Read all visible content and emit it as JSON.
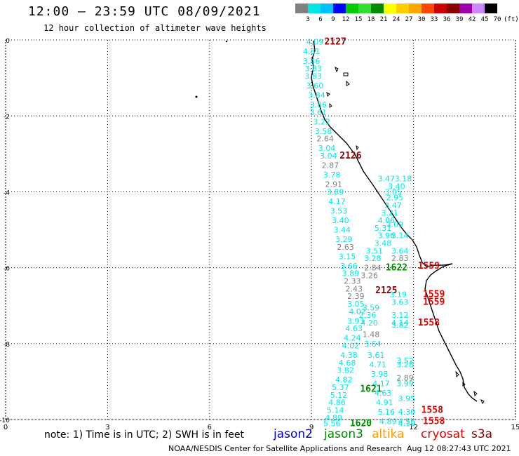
{
  "header": {
    "title": "12:00 – 23:59 UTC 08/09/2021",
    "subtitle": "12 hour collection of altimeter wave heights"
  },
  "color_scale": {
    "labels": [
      "3",
      "6",
      "9",
      "12",
      "15",
      "18",
      "21",
      "24",
      "27",
      "30",
      "33",
      "36",
      "39",
      "42",
      "45",
      "70",
      "(ft)"
    ],
    "colors": [
      "#808080",
      "#00e5e5",
      "#00bfff",
      "#0000ff",
      "#00cc00",
      "#33dd33",
      "#008800",
      "#ffff00",
      "#ffcc00",
      "#ffa500",
      "#ff4500",
      "#cc0000",
      "#880000",
      "#9900aa",
      "#cc88ff",
      "#000000"
    ]
  },
  "chart_data": {
    "type": "scatter",
    "x_axis_ticks": [
      "0",
      "3",
      "6",
      "9",
      "12",
      "15"
    ],
    "y_axis_ticks": [
      "0",
      "-2",
      "-4",
      "-6",
      "-8",
      "-10"
    ],
    "xlim": [
      0,
      15
    ],
    "ylim": [
      -10,
      0
    ],
    "grid": true,
    "track_labels": [
      {
        "text": "4.09",
        "x": 9.1,
        "y": -0.05,
        "color": "#00e5e5"
      },
      {
        "text": "2127",
        "x": 9.7,
        "y": -0.05,
        "color": "#880000"
      },
      {
        "text": "4.81",
        "x": 9.0,
        "y": -0.3,
        "color": "#00e5e5"
      },
      {
        "text": "3.46",
        "x": 9.0,
        "y": -0.55,
        "color": "#00e5e5"
      },
      {
        "text": "3.83",
        "x": 9.05,
        "y": -0.75,
        "color": "#00e5e5"
      },
      {
        "text": "3.83",
        "x": 9.05,
        "y": -0.95,
        "color": "#00e5e5"
      },
      {
        "text": "3.60",
        "x": 9.1,
        "y": -1.2,
        "color": "#00e5e5"
      },
      {
        "text": "3.84",
        "x": 9.15,
        "y": -1.45,
        "color": "#00e5e5"
      },
      {
        "text": "3.86",
        "x": 9.2,
        "y": -1.7,
        "color": "#00e5e5"
      },
      {
        "text": "3.61",
        "x": 9.2,
        "y": -1.9,
        "color": "#00e5e5"
      },
      {
        "text": "3.22",
        "x": 9.3,
        "y": -2.15,
        "color": "#00e5e5"
      },
      {
        "text": "3.58",
        "x": 9.35,
        "y": -2.4,
        "color": "#00e5e5"
      },
      {
        "text": "2.64",
        "x": 9.4,
        "y": -2.6,
        "color": "#808080"
      },
      {
        "text": "3.04",
        "x": 9.45,
        "y": -2.85,
        "color": "#00e5e5"
      },
      {
        "text": "3.04",
        "x": 9.5,
        "y": -3.05,
        "color": "#00e5e5"
      },
      {
        "text": "2126",
        "x": 10.15,
        "y": -3.05,
        "color": "#880000"
      },
      {
        "text": "2.87",
        "x": 9.55,
        "y": -3.3,
        "color": "#808080"
      },
      {
        "text": "3.78",
        "x": 9.6,
        "y": -3.55,
        "color": "#00e5e5"
      },
      {
        "text": "2.91",
        "x": 9.65,
        "y": -3.8,
        "color": "#808080"
      },
      {
        "text": "3.89",
        "x": 9.7,
        "y": -4.0,
        "color": "#00e5e5"
      },
      {
        "text": "4.17",
        "x": 9.75,
        "y": -4.25,
        "color": "#00e5e5"
      },
      {
        "text": "3.53",
        "x": 9.8,
        "y": -4.5,
        "color": "#00e5e5"
      },
      {
        "text": "3.40",
        "x": 9.85,
        "y": -4.75,
        "color": "#00e5e5"
      },
      {
        "text": "3.44",
        "x": 9.9,
        "y": -5.0,
        "color": "#00e5e5"
      },
      {
        "text": "3.29",
        "x": 9.95,
        "y": -5.25,
        "color": "#00e5e5"
      },
      {
        "text": "2.63",
        "x": 10.0,
        "y": -5.45,
        "color": "#808080"
      },
      {
        "text": "3.15",
        "x": 10.05,
        "y": -5.7,
        "color": "#00e5e5"
      },
      {
        "text": "3.66",
        "x": 10.1,
        "y": -5.95,
        "color": "#00e5e5"
      },
      {
        "text": "3.89",
        "x": 10.15,
        "y": -6.15,
        "color": "#00e5e5"
      },
      {
        "text": "2.33",
        "x": 10.2,
        "y": -6.35,
        "color": "#808080"
      },
      {
        "text": "2.43",
        "x": 10.25,
        "y": -6.55,
        "color": "#808080"
      },
      {
        "text": "2.39",
        "x": 10.3,
        "y": -6.75,
        "color": "#808080"
      },
      {
        "text": "3.05",
        "x": 10.3,
        "y": -6.95,
        "color": "#00e5e5"
      },
      {
        "text": "4.02",
        "x": 10.35,
        "y": -7.15,
        "color": "#00e5e5"
      },
      {
        "text": "3.93",
        "x": 10.3,
        "y": -7.4,
        "color": "#00e5e5"
      },
      {
        "text": "4.63",
        "x": 10.25,
        "y": -7.6,
        "color": "#00e5e5"
      },
      {
        "text": "4.24",
        "x": 10.2,
        "y": -7.85,
        "color": "#00e5e5"
      },
      {
        "text": "4.02",
        "x": 10.15,
        "y": -8.05,
        "color": "#00e5e5"
      },
      {
        "text": "4.38",
        "x": 10.1,
        "y": -8.3,
        "color": "#00e5e5"
      },
      {
        "text": "4.68",
        "x": 10.05,
        "y": -8.5,
        "color": "#00e5e5"
      },
      {
        "text": "3.82",
        "x": 10.0,
        "y": -8.7,
        "color": "#00e5e5"
      },
      {
        "text": "4.82",
        "x": 9.95,
        "y": -8.95,
        "color": "#00e5e5"
      },
      {
        "text": "5.37",
        "x": 9.85,
        "y": -9.15,
        "color": "#00e5e5"
      },
      {
        "text": "5.12",
        "x": 9.8,
        "y": -9.35,
        "color": "#00e5e5"
      },
      {
        "text": "4.86",
        "x": 9.75,
        "y": -9.55,
        "color": "#00e5e5"
      },
      {
        "text": "5.14",
        "x": 9.7,
        "y": -9.75,
        "color": "#00e5e5"
      },
      {
        "text": "4.89",
        "x": 9.65,
        "y": -9.95,
        "color": "#00e5e5"
      },
      {
        "text": "5.56",
        "x": 9.6,
        "y": -10.1,
        "color": "#00e5e5"
      },
      {
        "text": "1620",
        "x": 10.45,
        "y": -10.1,
        "color": "#008800"
      },
      {
        "text": "1621",
        "x": 10.75,
        "y": -9.2,
        "color": "#008800"
      },
      {
        "text": "3.47",
        "x": 11.2,
        "y": -3.65,
        "color": "#00e5e5"
      },
      {
        "text": "3.18",
        "x": 11.7,
        "y": -3.65,
        "color": "#00e5e5"
      },
      {
        "text": "3.40",
        "x": 11.5,
        "y": -3.85,
        "color": "#00e5e5"
      },
      {
        "text": "3.05",
        "x": 11.4,
        "y": -4.0,
        "color": "#00e5e5"
      },
      {
        "text": "2.95",
        "x": 11.45,
        "y": -4.15,
        "color": "#00e5e5"
      },
      {
        "text": "3.47",
        "x": 11.4,
        "y": -4.35,
        "color": "#00e5e5"
      },
      {
        "text": "3.21",
        "x": 11.3,
        "y": -4.55,
        "color": "#00e5e5"
      },
      {
        "text": "4.06",
        "x": 11.2,
        "y": -4.75,
        "color": "#00e5e5"
      },
      {
        "text": "3.09",
        "x": 11.45,
        "y": -4.85,
        "color": "#00e5e5"
      },
      {
        "text": "5.31",
        "x": 11.1,
        "y": -4.95,
        "color": "#00e5e5"
      },
      {
        "text": "3.96",
        "x": 11.2,
        "y": -5.15,
        "color": "#00e5e5"
      },
      {
        "text": "3.14",
        "x": 11.6,
        "y": -5.15,
        "color": "#00e5e5"
      },
      {
        "text": "3.48",
        "x": 11.1,
        "y": -5.35,
        "color": "#00e5e5"
      },
      {
        "text": "3.51",
        "x": 10.85,
        "y": -5.55,
        "color": "#00e5e5"
      },
      {
        "text": "3.64",
        "x": 11.6,
        "y": -5.55,
        "color": "#00e5e5"
      },
      {
        "text": "3.28",
        "x": 10.8,
        "y": -5.75,
        "color": "#00e5e5"
      },
      {
        "text": "2.83",
        "x": 11.6,
        "y": -5.75,
        "color": "#808080"
      },
      {
        "text": "2.84",
        "x": 10.8,
        "y": -6.0,
        "color": "#808080"
      },
      {
        "text": "1622",
        "x": 11.5,
        "y": -6.0,
        "color": "#008800"
      },
      {
        "text": "1559",
        "x": 12.45,
        "y": -5.95,
        "color": "#dd0000"
      },
      {
        "text": "3.26",
        "x": 10.7,
        "y": -6.2,
        "color": "#808080"
      },
      {
        "text": "2125",
        "x": 11.2,
        "y": -6.6,
        "color": "#880000"
      },
      {
        "text": "3.19",
        "x": 11.55,
        "y": -6.7,
        "color": "#00e5e5"
      },
      {
        "text": "1559",
        "x": 12.6,
        "y": -6.7,
        "color": "#dd0000"
      },
      {
        "text": "3.63",
        "x": 11.6,
        "y": -6.9,
        "color": "#00e5e5"
      },
      {
        "text": "1559",
        "x": 12.6,
        "y": -6.9,
        "color": "#dd0000"
      },
      {
        "text": "3.59",
        "x": 10.75,
        "y": -7.05,
        "color": "#00e5e5"
      },
      {
        "text": "2.36",
        "x": 10.65,
        "y": -7.25,
        "color": "#00e5e5"
      },
      {
        "text": "3.12",
        "x": 11.6,
        "y": -7.25,
        "color": "#00e5e5"
      },
      {
        "text": "4.20",
        "x": 10.7,
        "y": -7.45,
        "color": "#00e5e5"
      },
      {
        "text": "4.14",
        "x": 11.6,
        "y": -7.45,
        "color": "#00e5e5"
      },
      {
        "text": "3.82",
        "x": 11.6,
        "y": -7.5,
        "color": "#00e5e5"
      },
      {
        "text": "1558",
        "x": 12.45,
        "y": -7.45,
        "color": "#dd0000"
      },
      {
        "text": "1.48",
        "x": 10.75,
        "y": -7.75,
        "color": "#808080"
      },
      {
        "text": "3.64",
        "x": 10.8,
        "y": -8.0,
        "color": "#00e5e5"
      },
      {
        "text": "3.61",
        "x": 10.9,
        "y": -8.3,
        "color": "#00e5e5"
      },
      {
        "text": "4.71",
        "x": 10.95,
        "y": -8.55,
        "color": "#00e5e5"
      },
      {
        "text": "3.52",
        "x": 11.75,
        "y": -8.45,
        "color": "#00e5e5"
      },
      {
        "text": "3.28",
        "x": 11.75,
        "y": -8.55,
        "color": "#00e5e5"
      },
      {
        "text": "3.98",
        "x": 11.0,
        "y": -8.8,
        "color": "#00e5e5"
      },
      {
        "text": "2.89",
        "x": 11.75,
        "y": -8.9,
        "color": "#808080"
      },
      {
        "text": "4.17",
        "x": 11.05,
        "y": -9.05,
        "color": "#00e5e5"
      },
      {
        "text": "3.99",
        "x": 11.75,
        "y": -9.05,
        "color": "#00e5e5"
      },
      {
        "text": "4.63",
        "x": 11.1,
        "y": -9.3,
        "color": "#00e5e5"
      },
      {
        "text": "4.91",
        "x": 11.15,
        "y": -9.55,
        "color": "#00e5e5"
      },
      {
        "text": "3.95",
        "x": 11.8,
        "y": -9.45,
        "color": "#00e5e5"
      },
      {
        "text": "5.16",
        "x": 11.2,
        "y": -9.8,
        "color": "#00e5e5"
      },
      {
        "text": "4.30",
        "x": 11.8,
        "y": -9.8,
        "color": "#00e5e5"
      },
      {
        "text": "1558",
        "x": 12.55,
        "y": -9.75,
        "color": "#dd0000"
      },
      {
        "text": "4.89",
        "x": 11.25,
        "y": -10.05,
        "color": "#00e5e5"
      },
      {
        "text": "4.55",
        "x": 11.8,
        "y": -10.05,
        "color": "#00e5e5"
      },
      {
        "text": "4.19",
        "x": 11.8,
        "y": -10.1,
        "color": "#00e5e5"
      },
      {
        "text": "1558",
        "x": 12.6,
        "y": -10.05,
        "color": "#dd0000"
      }
    ]
  },
  "note": {
    "text": "note: 1) Time is in UTC; 2) SWH is in feet",
    "satellites": [
      {
        "name": "jason2",
        "color": "#0000cc"
      },
      {
        "name": "jason3",
        "color": "#008800"
      },
      {
        "name": "altika",
        "color": "#ff9900"
      },
      {
        "name": "cryosat",
        "color": "#dd0000"
      },
      {
        "name": "s3a",
        "color": "#880000"
      }
    ]
  },
  "footer": {
    "agency": "NOAA/NESDIS Center for Satellite Applications and Research",
    "timestamp": "Aug 12 08:27:43 UTC 2021"
  }
}
